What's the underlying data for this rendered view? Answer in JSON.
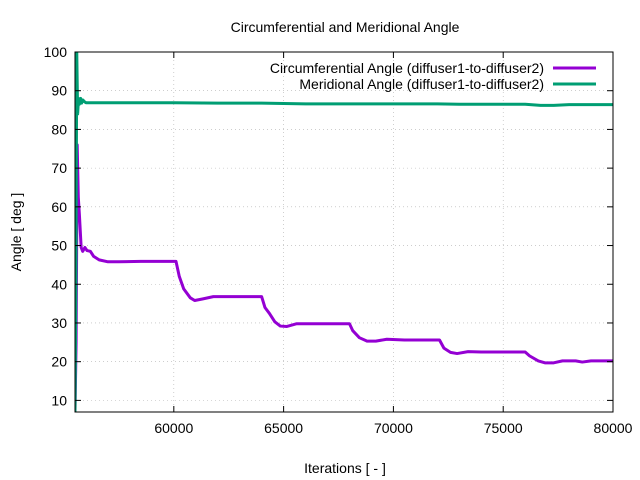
{
  "chart_data": {
    "type": "line",
    "title": "Circumferential and Meridional Angle",
    "xlabel": "Iterations [ - ]",
    "ylabel": "Angle [ deg ]",
    "xlim": [
      55500,
      80000
    ],
    "ylim": [
      7,
      100
    ],
    "xticks": [
      60000,
      65000,
      70000,
      75000,
      80000
    ],
    "yticks": [
      10,
      20,
      30,
      40,
      50,
      60,
      70,
      80,
      90,
      100
    ],
    "grid": true,
    "legend_position": "top-right",
    "series": [
      {
        "name": "Circumferential Angle (diffuser1-to-diffuser2)",
        "color": "#9400d3",
        "points": [
          [
            55500,
            7
          ],
          [
            55550,
            25
          ],
          [
            55600,
            76
          ],
          [
            55650,
            62.5
          ],
          [
            55700,
            58
          ],
          [
            55780,
            49.5
          ],
          [
            55850,
            48.5
          ],
          [
            55950,
            49.5
          ],
          [
            56050,
            48.7
          ],
          [
            56200,
            48.5
          ],
          [
            56350,
            47.2
          ],
          [
            56600,
            46.3
          ],
          [
            57000,
            45.8
          ],
          [
            57500,
            45.8
          ],
          [
            58500,
            45.9
          ],
          [
            60100,
            45.9
          ],
          [
            60250,
            42
          ],
          [
            60450,
            38.8
          ],
          [
            60750,
            36.5
          ],
          [
            60950,
            35.8
          ],
          [
            61300,
            36.2
          ],
          [
            61800,
            36.8
          ],
          [
            62500,
            36.8
          ],
          [
            63500,
            36.8
          ],
          [
            64000,
            36.8
          ],
          [
            64150,
            34
          ],
          [
            64350,
            32.5
          ],
          [
            64600,
            30.3
          ],
          [
            64850,
            29.2
          ],
          [
            65150,
            29.1
          ],
          [
            65600,
            29.8
          ],
          [
            66500,
            29.8
          ],
          [
            67500,
            29.8
          ],
          [
            68000,
            29.8
          ],
          [
            68150,
            28
          ],
          [
            68450,
            26.2
          ],
          [
            68800,
            25.3
          ],
          [
            69200,
            25.3
          ],
          [
            69700,
            25.8
          ],
          [
            70500,
            25.6
          ],
          [
            71500,
            25.6
          ],
          [
            72100,
            25.6
          ],
          [
            72300,
            23.5
          ],
          [
            72600,
            22.4
          ],
          [
            72900,
            22.1
          ],
          [
            73400,
            22.6
          ],
          [
            74000,
            22.5
          ],
          [
            75000,
            22.5
          ],
          [
            76000,
            22.5
          ],
          [
            76200,
            21.5
          ],
          [
            76600,
            20.2
          ],
          [
            76900,
            19.7
          ],
          [
            77300,
            19.7
          ],
          [
            77700,
            20.2
          ],
          [
            78300,
            20.2
          ],
          [
            78600,
            19.9
          ],
          [
            79000,
            20.2
          ],
          [
            80000,
            20.2
          ]
        ]
      },
      {
        "name": "Meridional Angle (diffuser1-to-diffuser2)",
        "color": "#009e73",
        "points": [
          [
            55500,
            7
          ],
          [
            55540,
            40
          ],
          [
            55580,
            100
          ],
          [
            55620,
            84
          ],
          [
            55660,
            88
          ],
          [
            55700,
            86.5
          ],
          [
            55760,
            88
          ],
          [
            55800,
            86.8
          ],
          [
            55860,
            87.6
          ],
          [
            55920,
            87.2
          ],
          [
            56000,
            86.9
          ],
          [
            57000,
            86.9
          ],
          [
            58000,
            86.9
          ],
          [
            60000,
            86.9
          ],
          [
            62000,
            86.8
          ],
          [
            64000,
            86.8
          ],
          [
            66000,
            86.6
          ],
          [
            68000,
            86.6
          ],
          [
            70000,
            86.6
          ],
          [
            72000,
            86.6
          ],
          [
            73000,
            86.5
          ],
          [
            74000,
            86.5
          ],
          [
            76000,
            86.5
          ],
          [
            76700,
            86.2
          ],
          [
            77300,
            86.2
          ],
          [
            78000,
            86.4
          ],
          [
            80000,
            86.4
          ]
        ]
      }
    ]
  }
}
